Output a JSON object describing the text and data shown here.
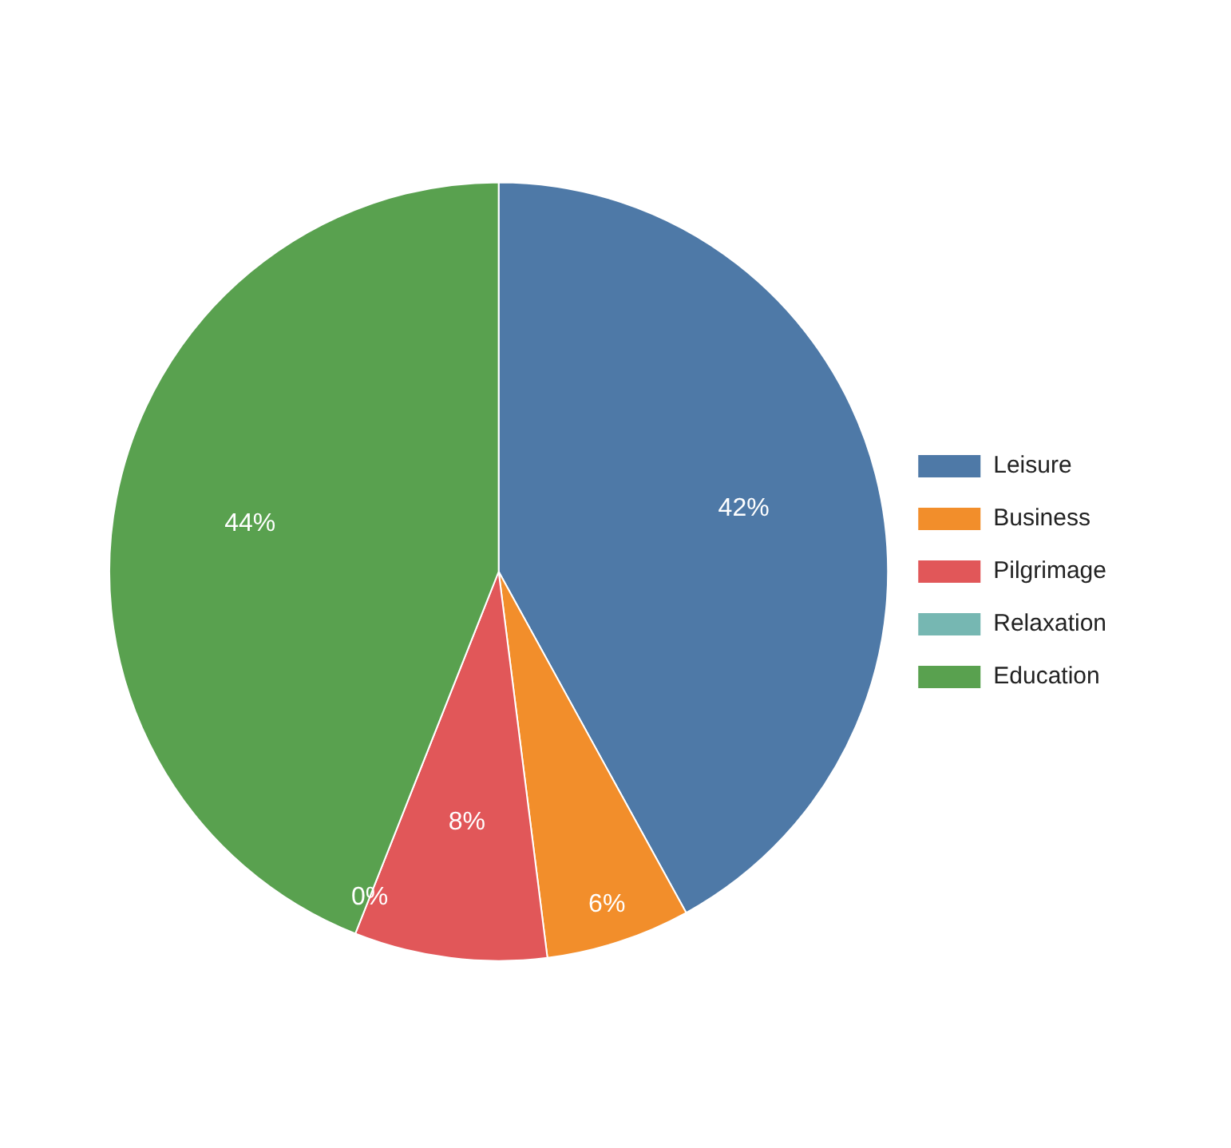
{
  "chart_data": {
    "type": "pie",
    "categories": [
      "Leisure",
      "Business",
      "Pilgrimage",
      "Relaxation",
      "Education"
    ],
    "values": [
      42,
      6,
      8,
      0,
      44
    ],
    "value_labels": [
      "42%",
      "6%",
      "8%",
      "0%",
      "44%"
    ],
    "colors": [
      "#4e79a7",
      "#f28e2b",
      "#e15759",
      "#76b7b2",
      "#59a14f"
    ],
    "legend": "right"
  }
}
